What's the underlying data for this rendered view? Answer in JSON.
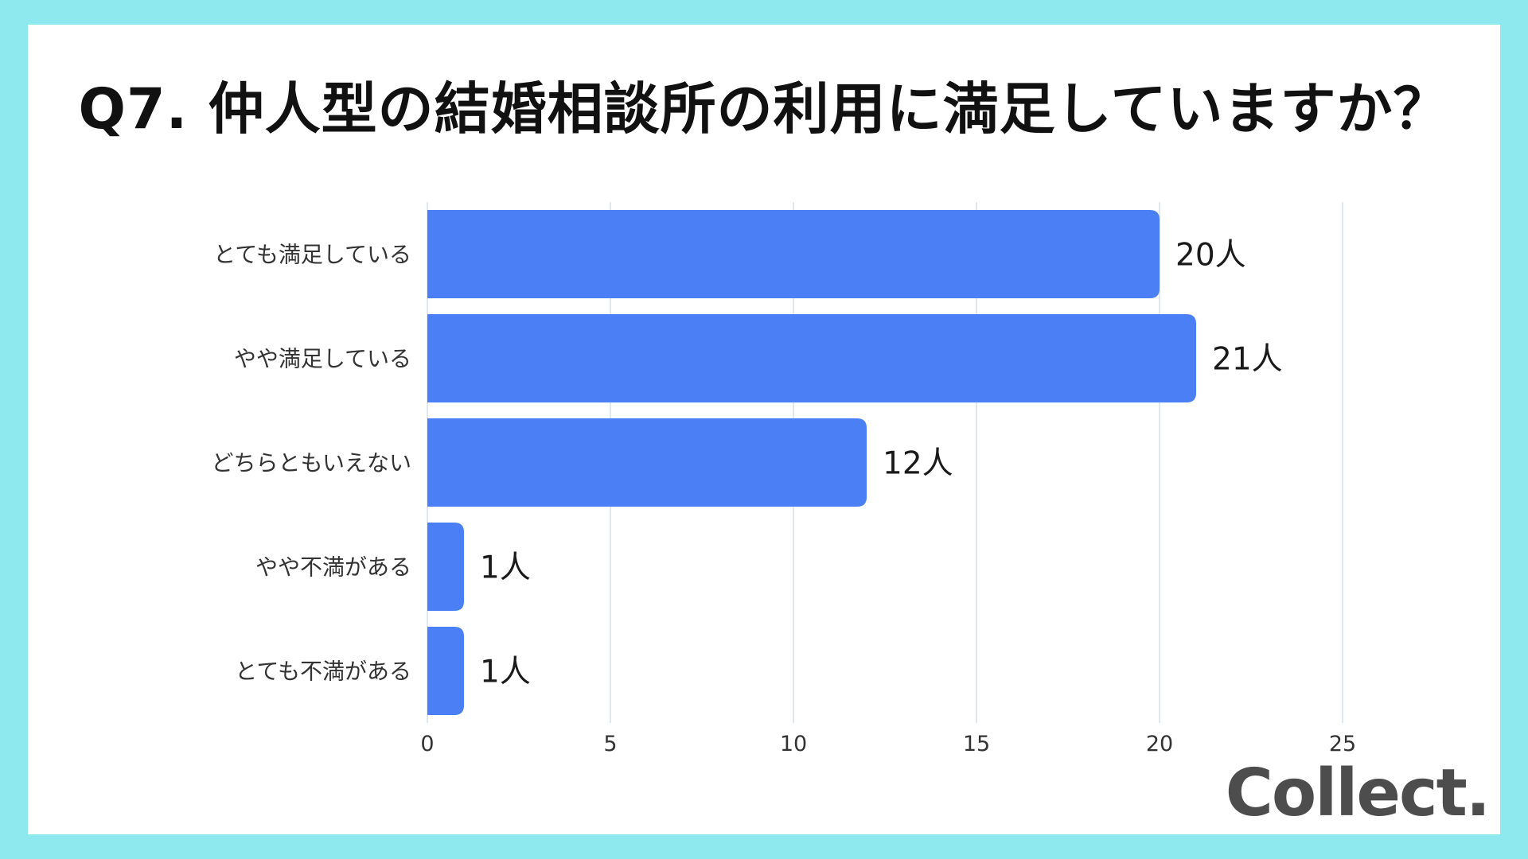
{
  "title": "Q7. 仲人型の結婚相談所の利用に満足していますか？",
  "brand": "Collect.",
  "colors": {
    "bar": "#4a7ff5",
    "grid": "#d5e1ea",
    "background": "#8ee9ee"
  },
  "chart_data": {
    "type": "bar",
    "orientation": "horizontal",
    "title": "Q7. 仲人型の結婚相談所の利用に満足していますか？",
    "categories": [
      "とても満足している",
      "やや満足している",
      "どちらともいえない",
      "やや不満がある",
      "とても不満がある"
    ],
    "values": [
      20,
      21,
      12,
      1,
      1
    ],
    "data_labels": [
      "20人",
      "21人",
      "12人",
      "1人",
      "1人"
    ],
    "xlim": [
      0,
      25
    ],
    "xticks": [
      0,
      5,
      10,
      15,
      20,
      25
    ],
    "xlabel": "",
    "ylabel": "",
    "grid": "vertical",
    "legend": "none"
  }
}
